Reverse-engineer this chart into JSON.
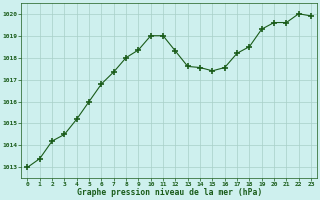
{
  "x": [
    0,
    1,
    2,
    3,
    4,
    5,
    6,
    7,
    8,
    9,
    10,
    11,
    12,
    13,
    14,
    15,
    16,
    17,
    18,
    19,
    20,
    21,
    22,
    23
  ],
  "y": [
    1013.0,
    1013.4,
    1014.2,
    1014.5,
    1015.2,
    1016.0,
    1016.8,
    1017.35,
    1018.0,
    1018.35,
    1019.0,
    1019.0,
    1018.3,
    1017.6,
    1017.55,
    1017.4,
    1017.55,
    1018.2,
    1018.5,
    1019.3,
    1019.6,
    1019.6,
    1020.0,
    1019.9
  ],
  "line_color": "#1a5c1a",
  "marker": "+",
  "marker_size": 4,
  "marker_lw": 1.2,
  "bg_color": "#cef0ee",
  "grid_color": "#a8cfc8",
  "xlabel": "Graphe pression niveau de la mer (hPa)",
  "xlabel_color": "#1a5c1a",
  "tick_color": "#1a5c1a",
  "ylim": [
    1012.5,
    1020.5
  ],
  "xlim": [
    -0.5,
    23.5
  ],
  "yticks": [
    1013,
    1014,
    1015,
    1016,
    1017,
    1018,
    1019,
    1020
  ],
  "xticks": [
    0,
    1,
    2,
    3,
    4,
    5,
    6,
    7,
    8,
    9,
    10,
    11,
    12,
    13,
    14,
    15,
    16,
    17,
    18,
    19,
    20,
    21,
    22,
    23
  ]
}
